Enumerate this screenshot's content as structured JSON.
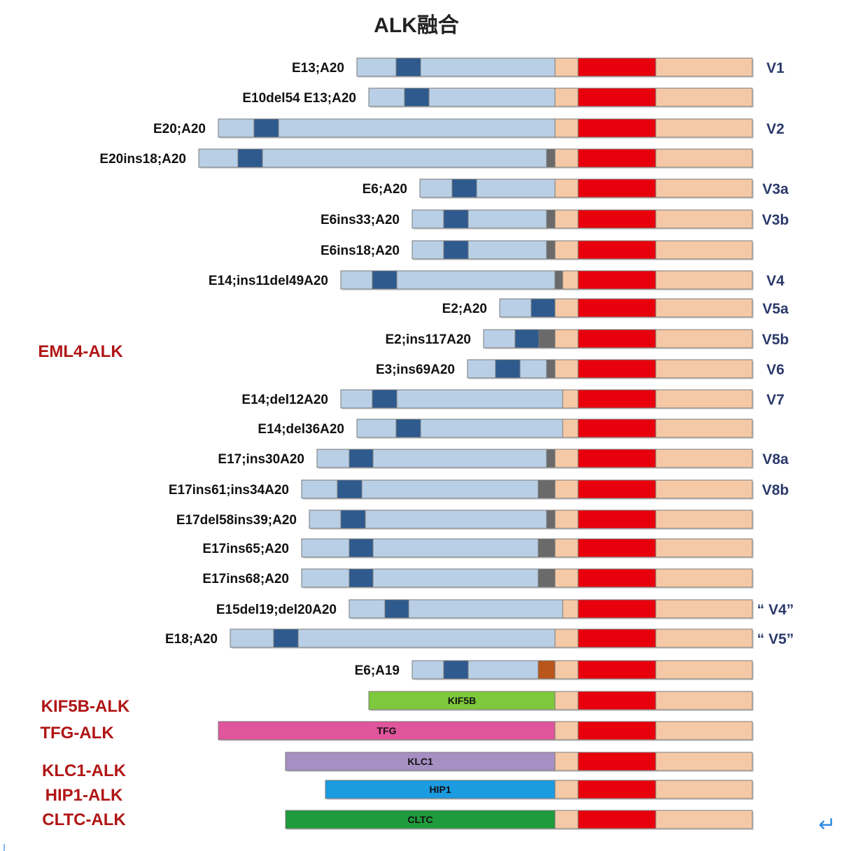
{
  "title": "ALK融合",
  "colors": {
    "partner": "#b8cfe6",
    "coiled_coil": "#2e5a8e",
    "insert_gray": "#6a6a6a",
    "insert_brown": "#b8561c",
    "alk_tan": "#f5c9a5",
    "kinase_red": "#e8000c",
    "outline": "#7a7a7a"
  },
  "groups": [
    {
      "label": "EML4-ALK"
    },
    {
      "label": "KIF5B-ALK"
    },
    {
      "label": "TFG-ALK"
    },
    {
      "label": "KLC1-ALK"
    },
    {
      "label": "HIP1-ALK"
    },
    {
      "label": "CLTC-ALK"
    }
  ],
  "rows": [
    {
      "label": "E13;A20",
      "variant": "V1"
    },
    {
      "label": "E10del54 E13;A20",
      "variant": ""
    },
    {
      "label": "E20;A20",
      "variant": "V2"
    },
    {
      "label": "E20ins18;A20",
      "variant": ""
    },
    {
      "label": "E6;A20",
      "variant": "V3a"
    },
    {
      "label": "E6ins33;A20",
      "variant": "V3b"
    },
    {
      "label": "E6ins18;A20",
      "variant": ""
    },
    {
      "label": "E14;ins11del49A20",
      "variant": "V4"
    },
    {
      "label": "E2;A20",
      "variant": "V5a"
    },
    {
      "label": "E2;ins117A20",
      "variant": "V5b"
    },
    {
      "label": "E3;ins69A20",
      "variant": "V6"
    },
    {
      "label": "E14;del12A20",
      "variant": "V7"
    },
    {
      "label": "E14;del36A20",
      "variant": ""
    },
    {
      "label": "E17;ins30A20",
      "variant": "V8a"
    },
    {
      "label": "E17ins61;ins34A20",
      "variant": "V8b"
    },
    {
      "label": "E17del58ins39;A20",
      "variant": ""
    },
    {
      "label": "E17ins65;A20",
      "variant": ""
    },
    {
      "label": "E17ins68;A20",
      "variant": ""
    },
    {
      "label": "E15del19;del20A20",
      "variant": "“ V4”"
    },
    {
      "label": "E18;A20",
      "variant": "“ V5”"
    },
    {
      "label": "E6;A19",
      "variant": ""
    },
    {
      "label": "",
      "variant": "",
      "partner_label": "KIF5B",
      "partner_color": "#7dc83c"
    },
    {
      "label": "",
      "variant": "",
      "partner_label": "TFG",
      "partner_color": "#e0559b"
    },
    {
      "label": "",
      "variant": "",
      "partner_label": "KLC1",
      "partner_color": "#a68fc2"
    },
    {
      "label": "",
      "variant": "",
      "partner_label": "HIP1",
      "partner_color": "#1b9be0"
    },
    {
      "label": "",
      "variant": "",
      "partner_label": "CLTC",
      "partner_color": "#1f9a3c"
    }
  ],
  "return_icon": "return-arrow-icon"
}
